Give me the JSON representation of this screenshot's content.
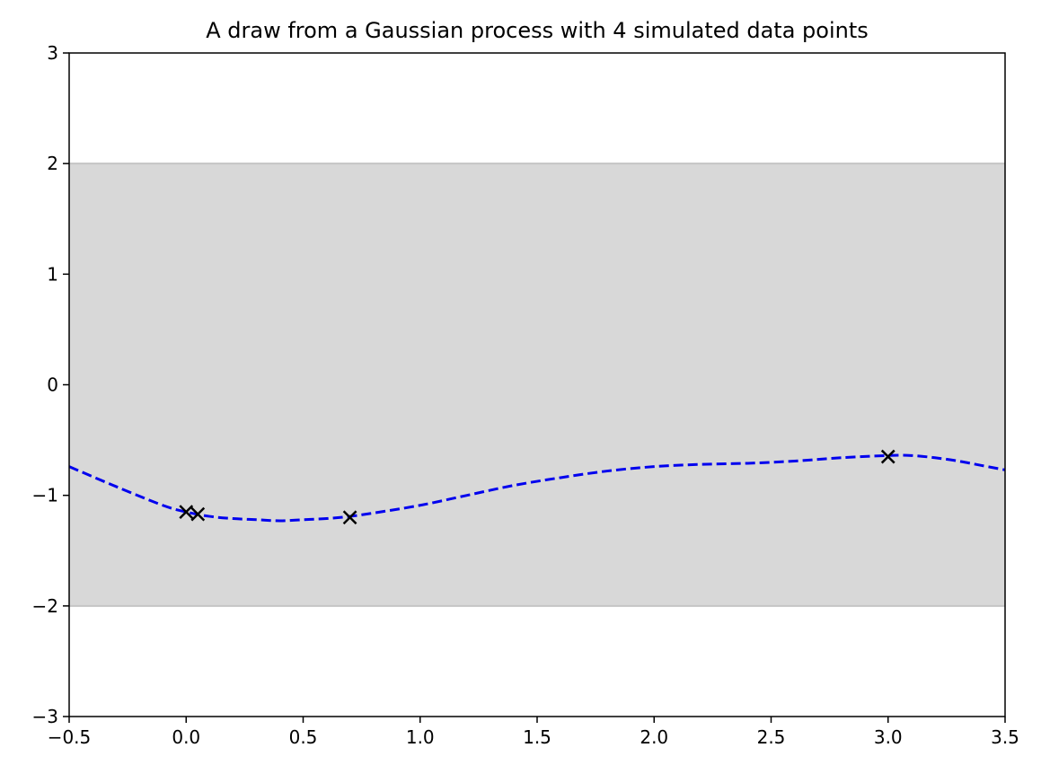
{
  "chart_data": {
    "type": "line",
    "title": "A draw from a Gaussian process with 4 simulated data points",
    "xlabel": "",
    "ylabel": "",
    "xlim": [
      -0.5,
      3.5
    ],
    "ylim": [
      -3,
      3
    ],
    "x_ticks": [
      "-0.5",
      "0.0",
      "0.5",
      "1.0",
      "1.5",
      "2.0",
      "2.5",
      "3.0",
      "3.5"
    ],
    "y_ticks": [
      "-3",
      "-2",
      "-1",
      "0",
      "1",
      "2",
      "3"
    ],
    "grid": false,
    "band": {
      "lower": -2,
      "upper": 2,
      "color": "#d8d8d8"
    },
    "series": [
      {
        "style": "dashed",
        "color": "#0000ee",
        "x": [
          -0.5,
          -0.3,
          -0.1,
          0.0,
          0.1,
          0.2,
          0.3,
          0.4,
          0.5,
          0.6,
          0.7,
          0.8,
          1.0,
          1.2,
          1.4,
          1.6,
          1.8,
          2.0,
          2.2,
          2.4,
          2.6,
          2.8,
          3.0,
          3.1,
          3.2,
          3.3,
          3.4,
          3.5
        ],
        "y": [
          -0.74,
          -0.92,
          -1.09,
          -1.15,
          -1.19,
          -1.21,
          -1.22,
          -1.23,
          -1.22,
          -1.21,
          -1.19,
          -1.16,
          -1.09,
          -1.0,
          -0.91,
          -0.84,
          -0.78,
          -0.74,
          -0.72,
          -0.71,
          -0.69,
          -0.66,
          -0.64,
          -0.64,
          -0.66,
          -0.69,
          -0.73,
          -0.77
        ]
      }
    ],
    "points": {
      "marker": "x",
      "color": "#000000",
      "x": [
        0.0,
        0.05,
        0.7,
        3.0
      ],
      "y": [
        -1.15,
        -1.17,
        -1.2,
        -0.65
      ]
    }
  }
}
